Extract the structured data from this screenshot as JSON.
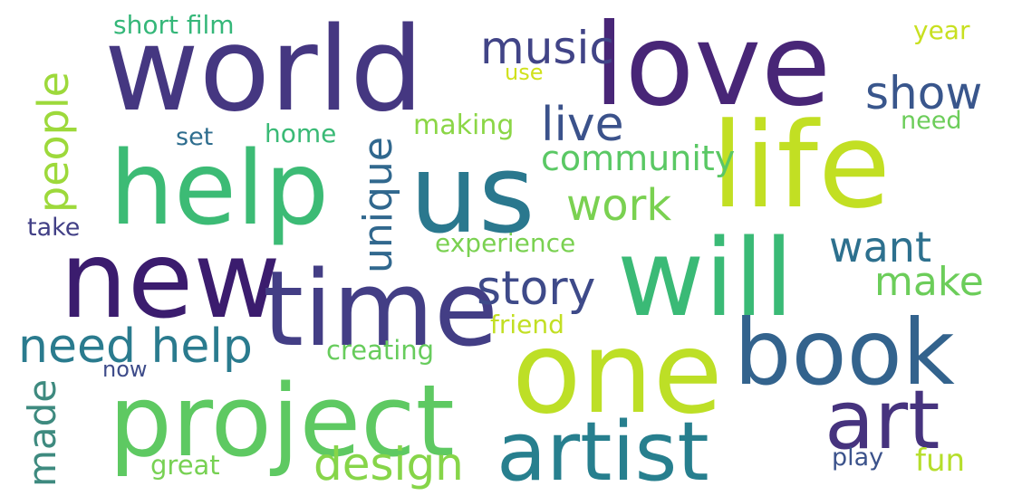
{
  "words": [
    {
      "id": "world",
      "text": "world",
      "color": "#453781"
    },
    {
      "id": "love",
      "text": "love",
      "color": "#482677"
    },
    {
      "id": "help",
      "text": "help",
      "color": "#3cbb75"
    },
    {
      "id": "us",
      "text": "us",
      "color": "#2a788e"
    },
    {
      "id": "life",
      "text": "life",
      "color": "#c2df23"
    },
    {
      "id": "new",
      "text": "new",
      "color": "#3b1c6e"
    },
    {
      "id": "time",
      "text": "time",
      "color": "#433e85"
    },
    {
      "id": "will",
      "text": "will",
      "color": "#3aba76"
    },
    {
      "id": "one",
      "text": "one",
      "color": "#bddf26"
    },
    {
      "id": "book",
      "text": "book",
      "color": "#33638d"
    },
    {
      "id": "project",
      "text": "project",
      "color": "#5ec962"
    },
    {
      "id": "artist",
      "text": "artist",
      "color": "#277f8e"
    },
    {
      "id": "art",
      "text": "art",
      "color": "#46337e"
    },
    {
      "id": "music",
      "text": "music",
      "color": "#414487"
    },
    {
      "id": "show",
      "text": "show",
      "color": "#39568c"
    },
    {
      "id": "live",
      "text": "live",
      "color": "#3b528b"
    },
    {
      "id": "community",
      "text": "community",
      "color": "#5ac864"
    },
    {
      "id": "work",
      "text": "work",
      "color": "#7ad151"
    },
    {
      "id": "want",
      "text": "want",
      "color": "#2d708e"
    },
    {
      "id": "story",
      "text": "story",
      "color": "#3e4a89"
    },
    {
      "id": "make",
      "text": "make",
      "color": "#6ccd5a"
    },
    {
      "id": "need-help",
      "text": "need help",
      "color": "#2a7b8e"
    },
    {
      "id": "design",
      "text": "design",
      "color": "#86d549"
    },
    {
      "id": "people",
      "text": "people",
      "color": "#9dd93b"
    },
    {
      "id": "unique",
      "text": "unique",
      "color": "#31688e"
    },
    {
      "id": "made",
      "text": "made",
      "color": "#3e8a7f"
    },
    {
      "id": "short-film",
      "text": "short film",
      "color": "#35b779"
    },
    {
      "id": "use",
      "text": "use",
      "color": "#d0e11c"
    },
    {
      "id": "year",
      "text": "year",
      "color": "#c8e020"
    },
    {
      "id": "need",
      "text": "need",
      "color": "#6ccd5a"
    },
    {
      "id": "making",
      "text": "making",
      "color": "#8bd646"
    },
    {
      "id": "set",
      "text": "set",
      "color": "#2e6d8e"
    },
    {
      "id": "home",
      "text": "home",
      "color": "#3aba76"
    },
    {
      "id": "take",
      "text": "take",
      "color": "#424086"
    },
    {
      "id": "experience",
      "text": "experience",
      "color": "#7ad151"
    },
    {
      "id": "friend",
      "text": "friend",
      "color": "#c2df23"
    },
    {
      "id": "creating",
      "text": "creating",
      "color": "#67cc5c"
    },
    {
      "id": "now",
      "text": "now",
      "color": "#3e4c8a"
    },
    {
      "id": "great",
      "text": "great",
      "color": "#77d153"
    },
    {
      "id": "play",
      "text": "play",
      "color": "#3b528b"
    },
    {
      "id": "fun",
      "text": "fun",
      "color": "#b5de2b"
    }
  ]
}
